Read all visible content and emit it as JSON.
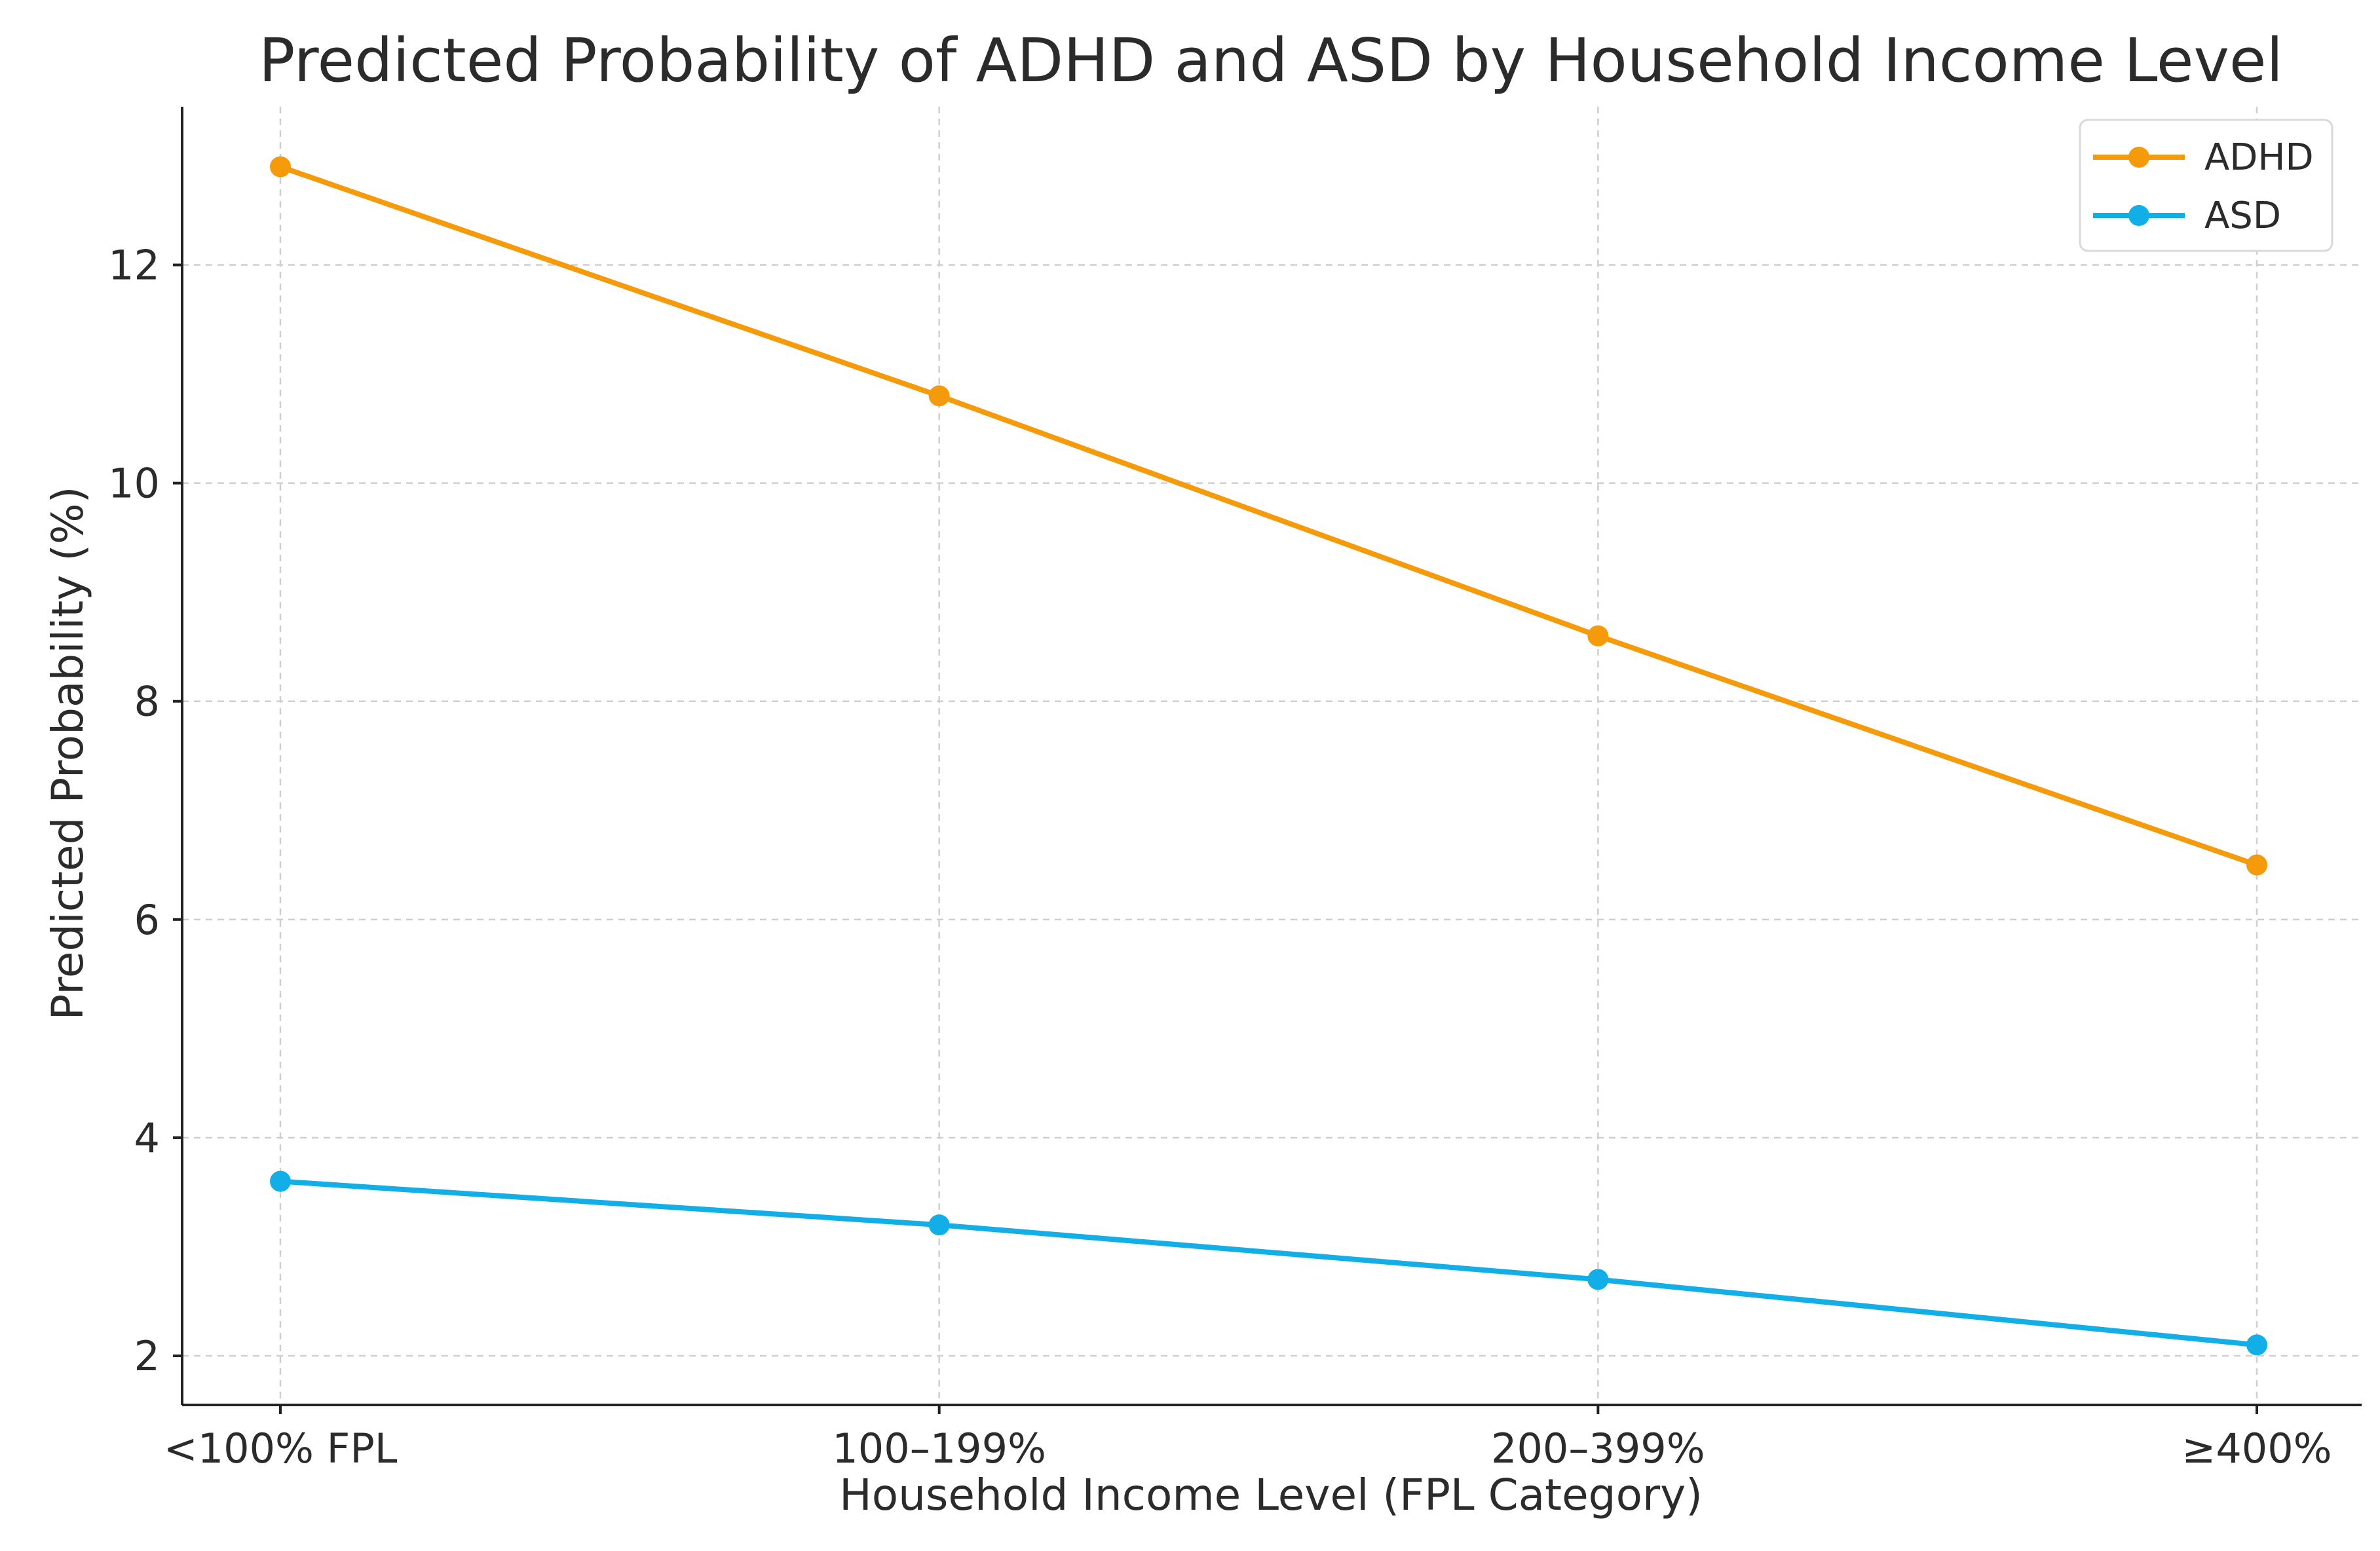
{
  "chart_data": {
    "type": "line",
    "title": "Predicted Probability of ADHD and ASD by Household Income Level",
    "xlabel": "Household Income Level (FPL Category)",
    "ylabel": "Predicted Probability (%)",
    "categories": [
      "<100% FPL",
      "100–199%",
      "200–399%",
      "≥400%"
    ],
    "series": [
      {
        "name": "ADHD",
        "color": "#f59a0b",
        "values": [
          12.9,
          10.8,
          8.6,
          6.5
        ]
      },
      {
        "name": "ASD",
        "color": "#12aee8",
        "values": [
          3.6,
          3.2,
          2.7,
          2.1
        ]
      }
    ],
    "ylim": [
      1.55,
      13.45
    ],
    "yticks": [
      2,
      4,
      6,
      8,
      10,
      12
    ],
    "ytick_labels": [
      "2",
      "4",
      "6",
      "8",
      "10",
      "12"
    ],
    "grid": true,
    "legend_position": "top-right"
  }
}
